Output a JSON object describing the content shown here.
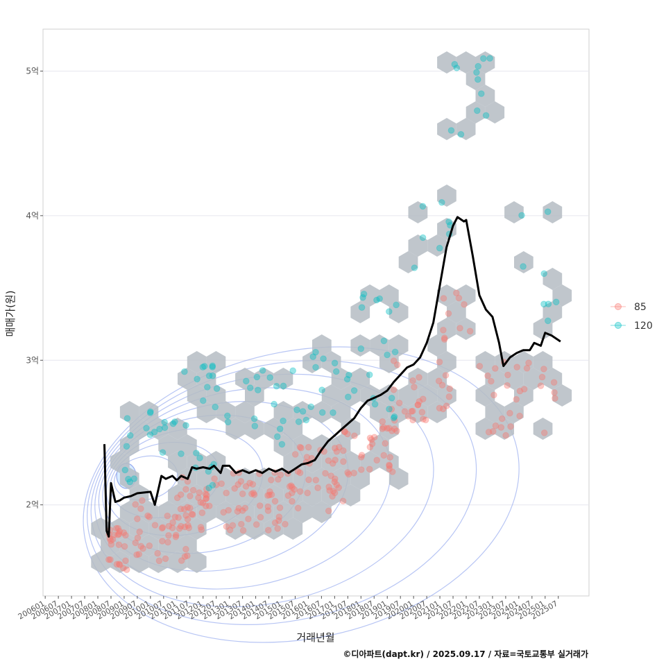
{
  "chart_data": {
    "type": "line",
    "title": "",
    "xlabel": "거래년월",
    "ylabel": "매매가(원)",
    "caption": "©디아파트(dapt.kr) / 2025.09.17 / 자료=국토교통부 실거래가",
    "x_ticks": [
      "200601",
      "200607",
      "200701",
      "200707",
      "200801",
      "200807",
      "200901",
      "200907",
      "201001",
      "201007",
      "201101",
      "201107",
      "201201",
      "201207",
      "201301",
      "201307",
      "201401",
      "201407",
      "201501",
      "201507",
      "201601",
      "201607",
      "201701",
      "201707",
      "201801",
      "201807",
      "201901",
      "201907",
      "202001",
      "202007",
      "202101",
      "202107",
      "202201",
      "202207",
      "202301",
      "202307",
      "202401",
      "202407",
      "202501",
      "202507"
    ],
    "y_ticks": [
      {
        "value": 2,
        "label": "2억"
      },
      {
        "value": 3,
        "label": "3억"
      },
      {
        "value": 4,
        "label": "4억"
      },
      {
        "value": 5,
        "label": "5억"
      }
    ],
    "xlim": [
      "2005-12",
      "2026-09"
    ],
    "ylim": [
      1.37,
      5.29
    ],
    "y_unit": "억원",
    "grid": true,
    "legend_position": "right",
    "legend": [
      {
        "label": "85",
        "color": "#F8766D"
      },
      {
        "label": "120",
        "color": "#00BFC4"
      }
    ],
    "hexbin_color": "#b5bcc3",
    "contour_color": "#98acef",
    "series": [
      {
        "name": "",
        "type": "line",
        "color": "#000000",
        "points": [
          [
            "2008-04",
            2.42
          ],
          [
            "2008-05",
            1.82
          ],
          [
            "2008-06",
            1.78
          ],
          [
            "2008-07",
            2.15
          ],
          [
            "2008-09",
            2.02
          ],
          [
            "2008-11",
            2.03
          ],
          [
            "2009-01",
            2.05
          ],
          [
            "2009-04",
            2.06
          ],
          [
            "2009-07",
            2.08
          ],
          [
            "2010-01",
            2.09
          ],
          [
            "2010-03",
            2.0
          ],
          [
            "2010-06",
            2.2
          ],
          [
            "2010-08",
            2.18
          ],
          [
            "2010-11",
            2.2
          ],
          [
            "2011-01",
            2.17
          ],
          [
            "2011-03",
            2.2
          ],
          [
            "2011-06",
            2.18
          ],
          [
            "2011-08",
            2.26
          ],
          [
            "2011-10",
            2.25
          ],
          [
            "2012-01",
            2.26
          ],
          [
            "2012-04",
            2.25
          ],
          [
            "2012-06",
            2.27
          ],
          [
            "2012-09",
            2.22
          ],
          [
            "2012-10",
            2.27
          ],
          [
            "2013-01",
            2.27
          ],
          [
            "2013-04",
            2.22
          ],
          [
            "2013-07",
            2.24
          ],
          [
            "2013-10",
            2.22
          ],
          [
            "2014-01",
            2.24
          ],
          [
            "2014-04",
            2.22
          ],
          [
            "2014-07",
            2.25
          ],
          [
            "2014-10",
            2.23
          ],
          [
            "2015-01",
            2.25
          ],
          [
            "2015-04",
            2.22
          ],
          [
            "2015-07",
            2.25
          ],
          [
            "2015-10",
            2.28
          ],
          [
            "2016-01",
            2.29
          ],
          [
            "2016-04",
            2.31
          ],
          [
            "2016-07",
            2.38
          ],
          [
            "2016-10",
            2.44
          ],
          [
            "2017-01",
            2.48
          ],
          [
            "2017-04",
            2.52
          ],
          [
            "2017-07",
            2.56
          ],
          [
            "2017-10",
            2.6
          ],
          [
            "2018-01",
            2.67
          ],
          [
            "2018-04",
            2.72
          ],
          [
            "2018-07",
            2.74
          ],
          [
            "2018-10",
            2.76
          ],
          [
            "2019-01",
            2.79
          ],
          [
            "2019-04",
            2.85
          ],
          [
            "2019-07",
            2.9
          ],
          [
            "2019-10",
            2.95
          ],
          [
            "2020-01",
            2.97
          ],
          [
            "2020-04",
            3.02
          ],
          [
            "2020-07",
            3.12
          ],
          [
            "2020-10",
            3.26
          ],
          [
            "2021-01",
            3.52
          ],
          [
            "2021-04",
            3.78
          ],
          [
            "2021-07",
            3.93
          ],
          [
            "2021-09",
            3.99
          ],
          [
            "2021-12",
            3.96
          ],
          [
            "2022-01",
            3.97
          ],
          [
            "2022-04",
            3.72
          ],
          [
            "2022-07",
            3.45
          ],
          [
            "2022-10",
            3.35
          ],
          [
            "2023-01",
            3.3
          ],
          [
            "2023-04",
            3.12
          ],
          [
            "2023-06",
            2.96
          ],
          [
            "2023-09",
            3.02
          ],
          [
            "2023-12",
            3.05
          ],
          [
            "2024-03",
            3.07
          ],
          [
            "2024-06",
            3.07
          ],
          [
            "2024-08",
            3.12
          ],
          [
            "2024-11",
            3.1
          ],
          [
            "2025-01",
            3.19
          ],
          [
            "2025-04",
            3.17
          ],
          [
            "2025-06",
            3.15
          ],
          [
            "2025-08",
            3.13
          ]
        ]
      },
      {
        "name": "85",
        "type": "scatter",
        "color": "#F8766D",
        "clusters": [
          {
            "x": [
              "2008-06",
              "2009-03"
            ],
            "y": [
              1.55,
              1.85
            ],
            "n": 24
          },
          {
            "x": [
              "2009-06",
              "2011-06"
            ],
            "y": [
              1.6,
              2.05
            ],
            "n": 36
          },
          {
            "x": [
              "2011-01",
              "2013-01"
            ],
            "y": [
              1.82,
              2.2
            ],
            "n": 40
          },
          {
            "x": [
              "2013-01",
              "2015-06"
            ],
            "y": [
              1.82,
              2.25
            ],
            "n": 48
          },
          {
            "x": [
              "2015-01",
              "2017-06"
            ],
            "y": [
              1.95,
              2.4
            ],
            "n": 40
          },
          {
            "x": [
              "2017-01",
              "2019-06"
            ],
            "y": [
              2.2,
              2.6
            ],
            "n": 34
          },
          {
            "x": [
              "2019-01",
              "2021-06"
            ],
            "y": [
              2.55,
              3.0
            ],
            "n": 30
          },
          {
            "x": [
              "2021-01",
              "2022-06"
            ],
            "y": [
              3.1,
              3.5
            ],
            "n": 10
          },
          {
            "x": [
              "2022-06",
              "2025-07"
            ],
            "y": [
              2.45,
              3.0
            ],
            "n": 30
          }
        ]
      },
      {
        "name": "120",
        "type": "scatter",
        "color": "#00BFC4",
        "clusters": [
          {
            "x": [
              "2009-01",
              "2009-06"
            ],
            "y": [
              2.15,
              2.25
            ],
            "n": 4
          },
          {
            "x": [
              "2009-01",
              "2011-06"
            ],
            "y": [
              2.35,
              2.65
            ],
            "n": 16
          },
          {
            "x": [
              "2011-06",
              "2012-06"
            ],
            "y": [
              2.1,
              2.4
            ],
            "n": 8
          },
          {
            "x": [
              "2011-01",
              "2012-06"
            ],
            "y": [
              2.7,
              3.0
            ],
            "n": 10
          },
          {
            "x": [
              "2012-06",
              "2016-06"
            ],
            "y": [
              2.4,
              2.95
            ],
            "n": 24
          },
          {
            "x": [
              "2016-01",
              "2019-06"
            ],
            "y": [
              2.6,
              3.1
            ],
            "n": 24
          },
          {
            "x": [
              "2018-01",
              "2019-06"
            ],
            "y": [
              3.1,
              3.48
            ],
            "n": 8
          },
          {
            "x": [
              "2020-01",
              "2021-06"
            ],
            "y": [
              3.45,
              4.35
            ],
            "n": 8
          },
          {
            "x": [
              "2021-06",
              "2023-01"
            ],
            "y": [
              4.55,
              5.1
            ],
            "n": 12
          },
          {
            "x": [
              "2024-01",
              "2025-07"
            ],
            "y": [
              3.2,
              4.05
            ],
            "n": 8
          }
        ]
      }
    ]
  }
}
